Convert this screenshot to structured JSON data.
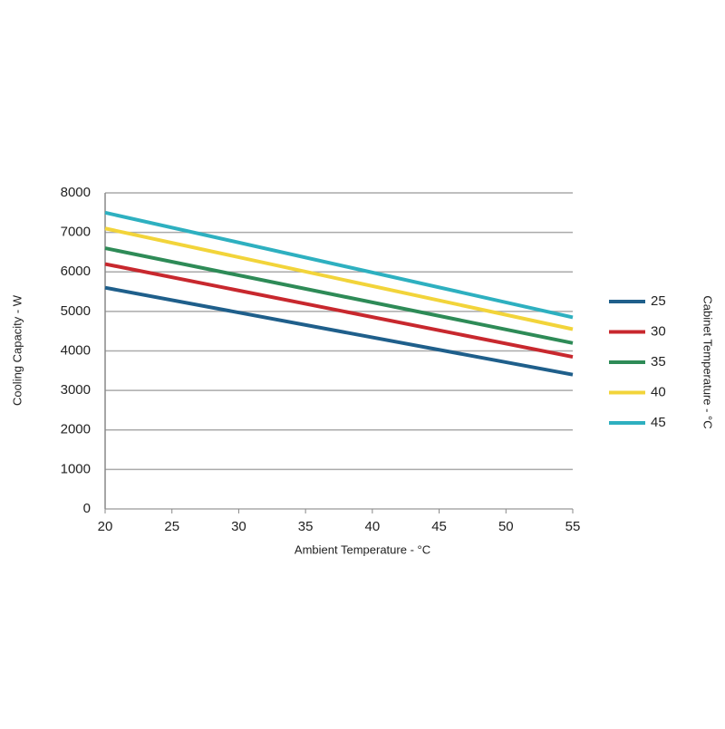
{
  "chart_data": {
    "type": "line",
    "x_label": "Ambient Temperature - °C",
    "y_label": "Cooling Capacity - W",
    "legend_title": "Cabinet Temperature - °C",
    "x": [
      20,
      55
    ],
    "series": [
      {
        "name": "25",
        "color": "#1f5f8b",
        "values": [
          5600,
          3400
        ]
      },
      {
        "name": "30",
        "color": "#c8282e",
        "values": [
          6200,
          3850
        ]
      },
      {
        "name": "35",
        "color": "#2e8b57",
        "values": [
          6600,
          4200
        ]
      },
      {
        "name": "40",
        "color": "#f2d43a",
        "values": [
          7100,
          4550
        ]
      },
      {
        "name": "45",
        "color": "#2eb0c0",
        "values": [
          7500,
          4850
        ]
      }
    ],
    "xlim": [
      20,
      55
    ],
    "xticks": [
      20,
      25,
      30,
      35,
      40,
      45,
      50,
      55
    ],
    "ylim": [
      0,
      8000
    ],
    "yticks": [
      0,
      1000,
      2000,
      3000,
      4000,
      5000,
      6000,
      7000,
      8000
    ],
    "grid": true,
    "legend": "right"
  }
}
